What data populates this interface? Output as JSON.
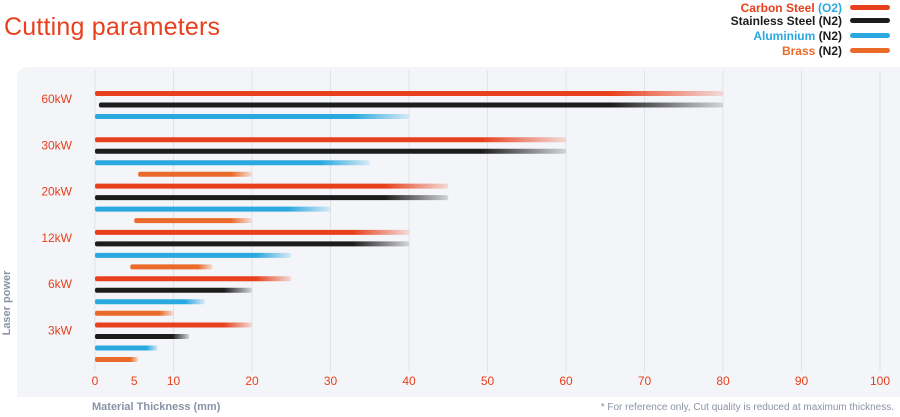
{
  "title": "Cutting parameters",
  "legend": [
    {
      "parts": [
        {
          "text": "Carbon Steel ",
          "color": "#e8401c"
        },
        {
          "text": "(O2)",
          "color": "#2aa8e0"
        }
      ],
      "swatch": "#e8401c"
    },
    {
      "parts": [
        {
          "text": "Stainless Steel (N2)",
          "color": "#1c1c1c"
        }
      ],
      "swatch": "#1c1c1c"
    },
    {
      "parts": [
        {
          "text": "Aluminium ",
          "color": "#2aa8e0"
        },
        {
          "text": "(N2)",
          "color": "#1c1c1c"
        }
      ],
      "swatch": "#2aa8e0"
    },
    {
      "parts": [
        {
          "text": "Brass ",
          "color": "#ea6a2a"
        },
        {
          "text": "(N2)",
          "color": "#1c1c1c"
        }
      ],
      "swatch": "#ea6a2a"
    }
  ],
  "footnote": "* For reference only, Cut quality is reduced at maximum thickness.",
  "chart_data": {
    "type": "bar",
    "orientation": "horizontal",
    "title": "Cutting parameters",
    "xlabel": "Material Thickness (mm)",
    "ylabel": "Laser power",
    "xlim": [
      0,
      100
    ],
    "xticks": [
      0,
      5,
      10,
      20,
      30,
      40,
      50,
      60,
      70,
      80,
      90,
      100
    ],
    "grid": true,
    "legend_position": "top-right",
    "categories": [
      "60kW",
      "30kW",
      "20kW",
      "12kW",
      "6kW",
      "3kW"
    ],
    "series": [
      {
        "name": "Carbon Steel (O2)",
        "color": "#e8401c",
        "values": [
          [
            0,
            80
          ],
          [
            0,
            60
          ],
          [
            0,
            45
          ],
          [
            0,
            40
          ],
          [
            0,
            25
          ],
          [
            0,
            20
          ]
        ]
      },
      {
        "name": "Stainless Steel (N2)",
        "color": "#1c1c1c",
        "values": [
          [
            0.5,
            80
          ],
          [
            0,
            60
          ],
          [
            0,
            45
          ],
          [
            0,
            40
          ],
          [
            0,
            20
          ],
          [
            0,
            12
          ]
        ]
      },
      {
        "name": "Aluminium (N2)",
        "color": "#2aa8e0",
        "values": [
          [
            0,
            40
          ],
          [
            0,
            35
          ],
          [
            0,
            30
          ],
          [
            0,
            25
          ],
          [
            0,
            14
          ],
          [
            0,
            8
          ]
        ]
      },
      {
        "name": "Brass (N2)",
        "color": "#ea6a2a",
        "values": [
          null,
          [
            5.5,
            20
          ],
          [
            5,
            20
          ],
          [
            4.5,
            15
          ],
          [
            0,
            10
          ],
          [
            0,
            5.5
          ]
        ]
      }
    ],
    "colors": {
      "tick_label": "#e8401c",
      "axis_label": "#8a93a5",
      "grid": "#e0e3ea"
    }
  }
}
